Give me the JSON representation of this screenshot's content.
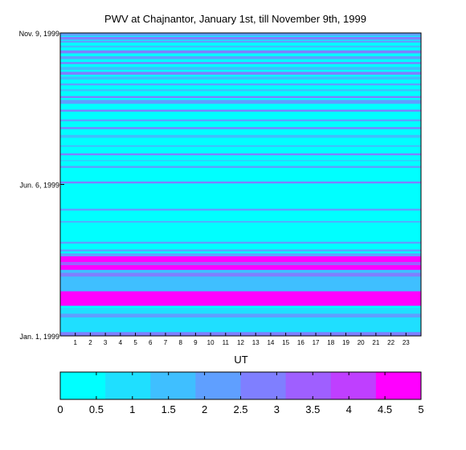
{
  "chart_data": {
    "type": "heatmap",
    "title": "PWV at Chajnantor, January 1st, till November 9th, 1999",
    "xlabel": "UT",
    "ylabel": "",
    "x_ticks": [
      "1",
      "2",
      "3",
      "4",
      "5",
      "6",
      "7",
      "8",
      "9",
      "10",
      "11",
      "12",
      "13",
      "14",
      "15",
      "16",
      "17",
      "18",
      "19",
      "20",
      "21",
      "22",
      "23"
    ],
    "y_ticks": [
      {
        "label": "Jan. 1, 1999",
        "day": 1
      },
      {
        "label": "Jun. 6, 1999",
        "day": 157
      },
      {
        "label": "Nov. 9, 1999",
        "day": 313
      }
    ],
    "xlim": [
      0,
      24
    ],
    "ylim": [
      1,
      313
    ],
    "colorbar": {
      "ticks": [
        "0",
        "0.5",
        "1",
        "1.5",
        "2",
        "2.5",
        "3",
        "3.5",
        "4",
        "4.5",
        "5"
      ],
      "range": [
        0,
        5
      ],
      "levels": 8,
      "colors": [
        "#00ffff",
        "#1fdfff",
        "#3fbfff",
        "#5f9fff",
        "#7f7fff",
        "#9f5fff",
        "#bf3fff",
        "#ff00ff"
      ]
    },
    "bands": [
      {
        "from_day": 1,
        "to_day": 5,
        "value": 3.0
      },
      {
        "from_day": 5,
        "to_day": 20,
        "value": 1.2
      },
      {
        "from_day": 20,
        "to_day": 24,
        "value": 2.2
      },
      {
        "from_day": 24,
        "to_day": 30,
        "value": 0.8
      },
      {
        "from_day": 32,
        "to_day": 47,
        "value": 5.0
      },
      {
        "from_day": 47,
        "to_day": 62,
        "value": 1.5
      },
      {
        "from_day": 62,
        "to_day": 66,
        "value": 2.8
      },
      {
        "from_day": 66,
        "to_day": 69,
        "value": 1.8
      },
      {
        "from_day": 69,
        "to_day": 74,
        "value": 5.0
      },
      {
        "from_day": 74,
        "to_day": 77,
        "value": 3.2
      },
      {
        "from_day": 77,
        "to_day": 83,
        "value": 5.0
      },
      {
        "from_day": 83,
        "to_day": 86,
        "value": 2.0
      },
      {
        "from_day": 88,
        "to_day": 90,
        "value": 2.2
      },
      {
        "from_day": 96,
        "to_day": 98,
        "value": 2.0
      },
      {
        "from_day": 118,
        "to_day": 119,
        "value": 2.5
      },
      {
        "from_day": 130,
        "to_day": 132,
        "value": 2.2
      },
      {
        "from_day": 158,
        "to_day": 160,
        "value": 2.5
      },
      {
        "from_day": 174,
        "to_day": 176,
        "value": 2.2
      },
      {
        "from_day": 181,
        "to_day": 182,
        "value": 1.8
      },
      {
        "from_day": 187,
        "to_day": 189,
        "value": 2.8
      },
      {
        "from_day": 196,
        "to_day": 197,
        "value": 2.2
      },
      {
        "from_day": 205,
        "to_day": 208,
        "value": 1.8
      },
      {
        "from_day": 214,
        "to_day": 216,
        "value": 2.5
      },
      {
        "from_day": 222,
        "to_day": 224,
        "value": 2.0
      },
      {
        "from_day": 232,
        "to_day": 234,
        "value": 3.0
      },
      {
        "from_day": 240,
        "to_day": 244,
        "value": 2.0
      },
      {
        "from_day": 246,
        "to_day": 248,
        "value": 2.5
      },
      {
        "from_day": 253,
        "to_day": 255,
        "value": 1.8
      },
      {
        "from_day": 259,
        "to_day": 261,
        "value": 2.2
      },
      {
        "from_day": 265,
        "to_day": 268,
        "value": 1.5
      },
      {
        "from_day": 270,
        "to_day": 273,
        "value": 2.5
      },
      {
        "from_day": 275,
        "to_day": 278,
        "value": 1.8
      },
      {
        "from_day": 281,
        "to_day": 283,
        "value": 2.8
      },
      {
        "from_day": 286,
        "to_day": 289,
        "value": 2.0
      },
      {
        "from_day": 292,
        "to_day": 295,
        "value": 2.5
      },
      {
        "from_day": 298,
        "to_day": 300,
        "value": 1.8
      },
      {
        "from_day": 303,
        "to_day": 305,
        "value": 2.2
      },
      {
        "from_day": 306,
        "to_day": 309,
        "value": 2.8
      },
      {
        "from_day": 310,
        "to_day": 313,
        "value": 2.0
      }
    ]
  }
}
